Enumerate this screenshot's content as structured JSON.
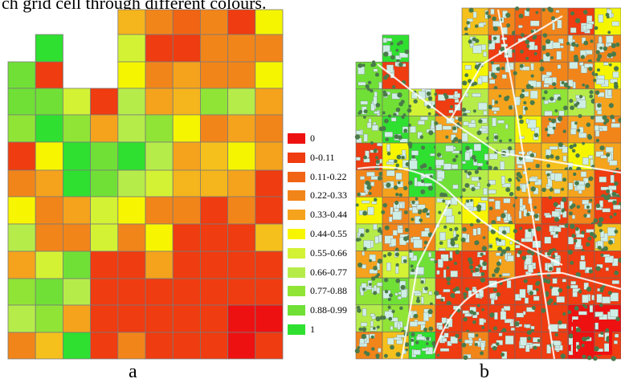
{
  "header_text": "ch grid cell through different colours.",
  "legend": [
    {
      "label": "0",
      "color": "#ee1111"
    },
    {
      "label": "0-0.11",
      "color": "#ef3c10"
    },
    {
      "label": "0.11-0.22",
      "color": "#f06414"
    },
    {
      "label": "0.22-0.33",
      "color": "#f2851a"
    },
    {
      "label": "0.33-0.44",
      "color": "#f5a31c"
    },
    {
      "label": "0.44-0.55",
      "color": "#f8f500"
    },
    {
      "label": "0.55-0.66",
      "color": "#d4f234"
    },
    {
      "label": "0.66-0.77",
      "color": "#b6ec4a"
    },
    {
      "label": "0.77-0.88",
      "color": "#90e436"
    },
    {
      "label": "0.88-0.99",
      "color": "#70e036"
    },
    {
      "label": "1",
      "color": "#30e030"
    }
  ],
  "panels": {
    "a": "a",
    "b": "b"
  },
  "grid": {
    "rows": [
      "-----44321",
      "-9--521113",
      "-1--511115",
      "998465795",
      "89944855632",
      "15999742553",
      "2399734533",
      "5227554212",
      "7321751113",
      "4592111221",
      "8991111111",
      "77811111100",
      "35911111101"
    ]
  },
  "colors": {
    "cell_border": "#7a7a7a",
    "tree": "#4a7a4a",
    "building": "#cfeee6",
    "road": "#ffffff"
  }
}
